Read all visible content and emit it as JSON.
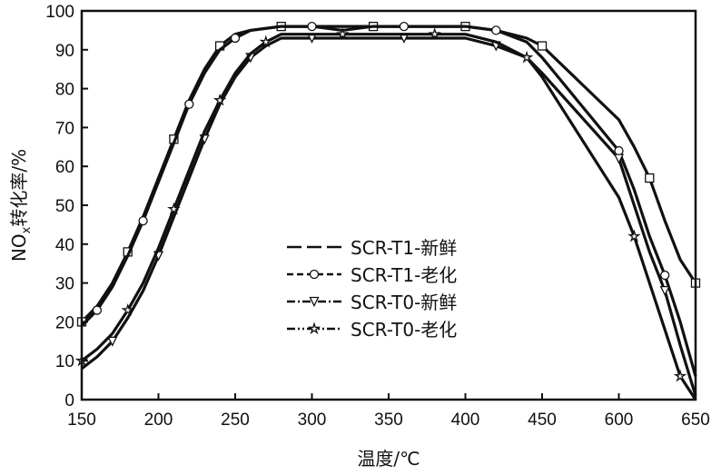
{
  "chart_data": {
    "type": "line",
    "xlabel": "温度/℃",
    "ylabel_main": "NO",
    "ylabel_sub": "x",
    "ylabel_rest": "转化率/%",
    "x_ticks": [
      "150",
      "200",
      "250",
      "300",
      "350",
      "400",
      "450",
      "600",
      "650"
    ],
    "x_tick_values": [
      150,
      200,
      250,
      300,
      350,
      400,
      450,
      600,
      650
    ],
    "y_ticks": [
      "0",
      "10",
      "20",
      "30",
      "40",
      "50",
      "60",
      "70",
      "80",
      "90",
      "100"
    ],
    "ylim": [
      0,
      100
    ],
    "x_axis_note": "axis is non-linear: labels 450 and 600 are adjacent",
    "legend_position": "center-right",
    "series": [
      {
        "name": "SCR-T1-新鲜",
        "marker": "square",
        "dash": "long",
        "points": [
          [
            150,
            20
          ],
          [
            160,
            24
          ],
          [
            170,
            30
          ],
          [
            180,
            38
          ],
          [
            190,
            47
          ],
          [
            200,
            57
          ],
          [
            210,
            67
          ],
          [
            220,
            77
          ],
          [
            230,
            85
          ],
          [
            240,
            91
          ],
          [
            250,
            94
          ],
          [
            260,
            95
          ],
          [
            280,
            96
          ],
          [
            300,
            96
          ],
          [
            320,
            96
          ],
          [
            340,
            96
          ],
          [
            360,
            96
          ],
          [
            380,
            96
          ],
          [
            400,
            96
          ],
          [
            420,
            95
          ],
          [
            440,
            93
          ],
          [
            450,
            91
          ],
          [
            600,
            72
          ],
          [
            610,
            65
          ],
          [
            620,
            57
          ],
          [
            630,
            46
          ],
          [
            640,
            36
          ],
          [
            650,
            30
          ]
        ]
      },
      {
        "name": "SCR-T1-老化",
        "marker": "circle",
        "dash": "short",
        "points": [
          [
            150,
            19
          ],
          [
            160,
            23
          ],
          [
            170,
            29
          ],
          [
            180,
            37
          ],
          [
            190,
            46
          ],
          [
            200,
            56
          ],
          [
            210,
            66
          ],
          [
            220,
            76
          ],
          [
            230,
            84
          ],
          [
            240,
            90
          ],
          [
            250,
            93
          ],
          [
            260,
            95
          ],
          [
            280,
            96
          ],
          [
            300,
            96
          ],
          [
            320,
            95
          ],
          [
            340,
            96
          ],
          [
            360,
            96
          ],
          [
            380,
            96
          ],
          [
            400,
            96
          ],
          [
            420,
            95
          ],
          [
            440,
            92
          ],
          [
            450,
            88
          ],
          [
            600,
            64
          ],
          [
            610,
            54
          ],
          [
            620,
            42
          ],
          [
            630,
            32
          ],
          [
            640,
            20
          ],
          [
            650,
            6
          ]
        ]
      },
      {
        "name": "SCR-T0-新鲜",
        "marker": "triangle-down",
        "dash": "dash-dot",
        "points": [
          [
            150,
            8
          ],
          [
            160,
            11
          ],
          [
            170,
            15
          ],
          [
            180,
            21
          ],
          [
            190,
            28
          ],
          [
            200,
            37
          ],
          [
            210,
            47
          ],
          [
            220,
            57
          ],
          [
            230,
            67
          ],
          [
            240,
            76
          ],
          [
            250,
            83
          ],
          [
            260,
            88
          ],
          [
            270,
            91
          ],
          [
            280,
            93
          ],
          [
            300,
            93
          ],
          [
            320,
            93
          ],
          [
            340,
            93
          ],
          [
            360,
            93
          ],
          [
            380,
            93
          ],
          [
            400,
            93
          ],
          [
            420,
            91
          ],
          [
            440,
            88
          ],
          [
            450,
            84
          ],
          [
            600,
            62
          ],
          [
            610,
            50
          ],
          [
            620,
            38
          ],
          [
            630,
            28
          ],
          [
            640,
            14
          ],
          [
            650,
            1
          ]
        ]
      },
      {
        "name": "SCR-T0-老化",
        "marker": "star",
        "dash": "dash-dot-dot",
        "points": [
          [
            150,
            10
          ],
          [
            160,
            13
          ],
          [
            170,
            17
          ],
          [
            180,
            23
          ],
          [
            190,
            30
          ],
          [
            200,
            39
          ],
          [
            210,
            49
          ],
          [
            220,
            59
          ],
          [
            230,
            69
          ],
          [
            240,
            77
          ],
          [
            250,
            84
          ],
          [
            260,
            89
          ],
          [
            270,
            92
          ],
          [
            280,
            94
          ],
          [
            300,
            94
          ],
          [
            320,
            94
          ],
          [
            340,
            94
          ],
          [
            360,
            94
          ],
          [
            380,
            94
          ],
          [
            400,
            94
          ],
          [
            420,
            92
          ],
          [
            440,
            88
          ],
          [
            450,
            83
          ],
          [
            600,
            52
          ],
          [
            610,
            42
          ],
          [
            620,
            30
          ],
          [
            630,
            18
          ],
          [
            640,
            6
          ],
          [
            650,
            0
          ]
        ]
      }
    ]
  }
}
